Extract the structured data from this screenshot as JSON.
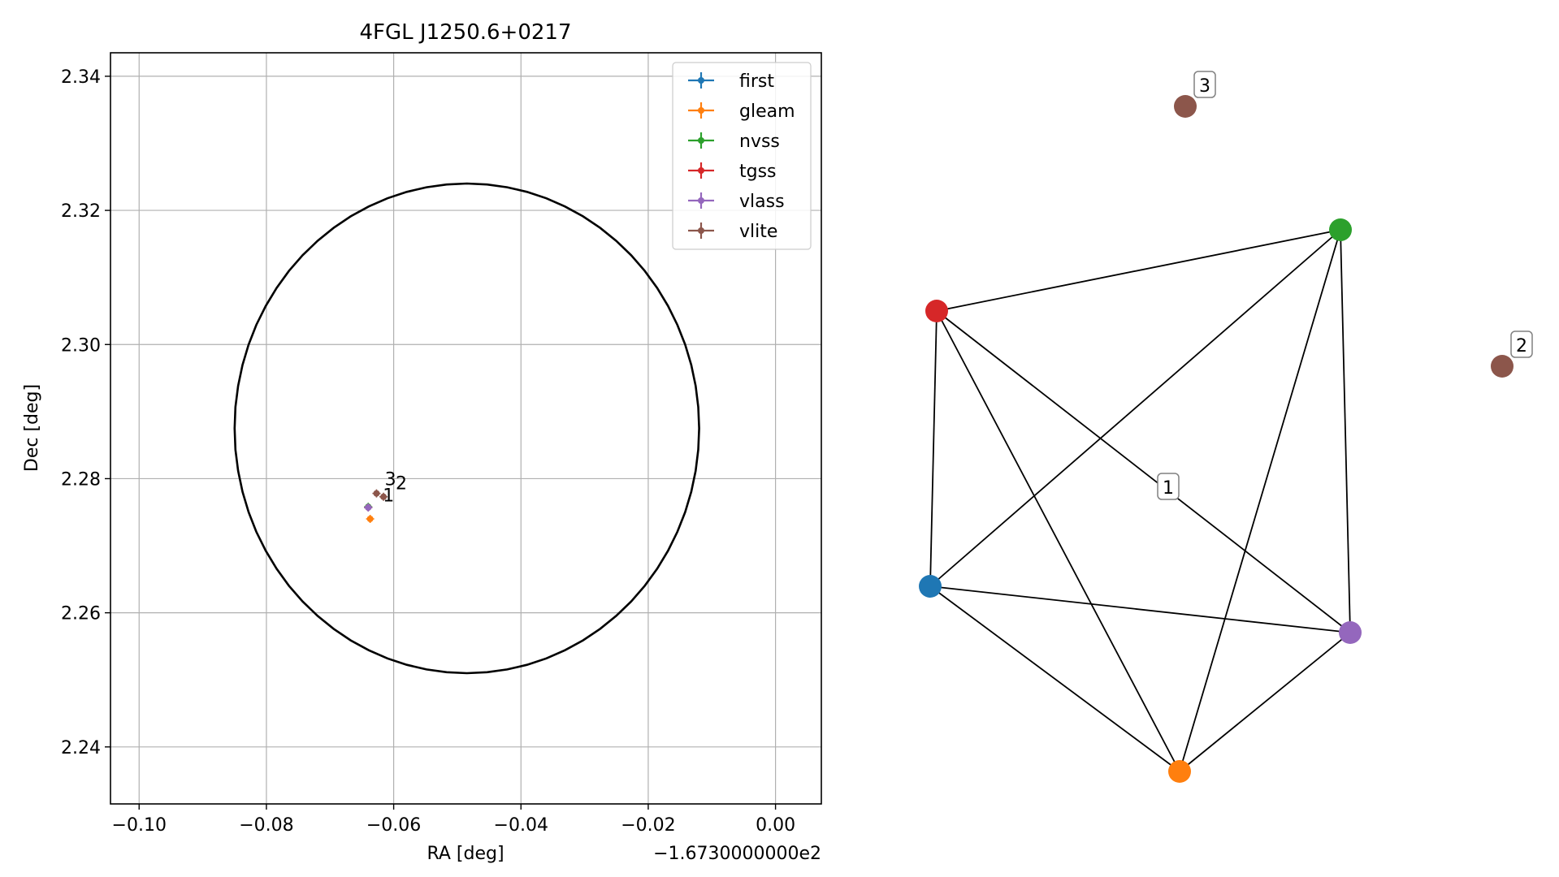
{
  "chart_data": [
    {
      "type": "scatter",
      "title": "4FGL J1250.6+0217",
      "xlabel": "RA [deg]",
      "ylabel": "Dec [deg]",
      "x_offset_text": "−1.6730000000e2",
      "xlim": [
        -0.1045,
        0.0072
      ],
      "ylim": [
        2.2315,
        2.3435
      ],
      "x_ticks": [
        -0.1,
        -0.08,
        -0.06,
        -0.04,
        -0.02,
        0.0
      ],
      "x_tick_labels": [
        "−0.10",
        "−0.08",
        "−0.06",
        "−0.04",
        "−0.02",
        "0.00"
      ],
      "y_ticks": [
        2.24,
        2.26,
        2.28,
        2.3,
        2.32,
        2.34
      ],
      "y_tick_labels": [
        "2.24",
        "2.26",
        "2.28",
        "2.30",
        "2.32",
        "2.34"
      ],
      "grid": true,
      "legend_position": "top-right",
      "series": [
        {
          "name": "first",
          "color": "#1f77b4",
          "points": [
            {
              "x": -0.064,
              "y": 2.2757
            }
          ]
        },
        {
          "name": "gleam",
          "color": "#ff7f0e",
          "points": [
            {
              "x": -0.0637,
              "y": 2.274
            }
          ]
        },
        {
          "name": "nvss",
          "color": "#2ca02c",
          "points": [
            {
              "x": -0.064,
              "y": 2.2758
            }
          ]
        },
        {
          "name": "tgss",
          "color": "#d62728",
          "points": [
            {
              "x": -0.064,
              "y": 2.2757
            }
          ]
        },
        {
          "name": "vlass",
          "color": "#9467bd",
          "points": [
            {
              "x": -0.064,
              "y": 2.2757
            }
          ]
        },
        {
          "name": "vlite",
          "color": "#8c564b",
          "points": [
            {
              "x": -0.0616,
              "y": 2.2773
            },
            {
              "x": -0.0627,
              "y": 2.2778
            }
          ]
        }
      ],
      "circle": {
        "center_x": -0.0485,
        "center_y": 2.2875,
        "radius": 0.0365,
        "color": "#000000"
      },
      "point_labels": [
        {
          "text": "3",
          "x": -0.0614,
          "y": 2.279
        },
        {
          "text": "2",
          "x": -0.0597,
          "y": 2.2784
        },
        {
          "text": "1",
          "x": -0.0617,
          "y": 2.2766
        }
      ]
    },
    {
      "type": "network",
      "nodes": [
        {
          "id": "first",
          "color": "#1f77b4"
        },
        {
          "id": "gleam",
          "color": "#ff7f0e"
        },
        {
          "id": "nvss",
          "color": "#2ca02c"
        },
        {
          "id": "tgss",
          "color": "#d62728"
        },
        {
          "id": "vlass",
          "color": "#9467bd"
        },
        {
          "id": "vlite-2",
          "color": "#8c564b",
          "label": "2"
        },
        {
          "id": "vlite-3",
          "color": "#8c564b",
          "label": "3"
        }
      ],
      "edges": [
        [
          "tgss",
          "nvss"
        ],
        [
          "tgss",
          "first"
        ],
        [
          "tgss",
          "gleam"
        ],
        [
          "tgss",
          "vlass"
        ],
        [
          "nvss",
          "first"
        ],
        [
          "nvss",
          "gleam"
        ],
        [
          "nvss",
          "vlass"
        ],
        [
          "first",
          "vlass"
        ],
        [
          "first",
          "gleam"
        ],
        [
          "gleam",
          "vlass"
        ]
      ],
      "cluster_label": "1"
    }
  ]
}
